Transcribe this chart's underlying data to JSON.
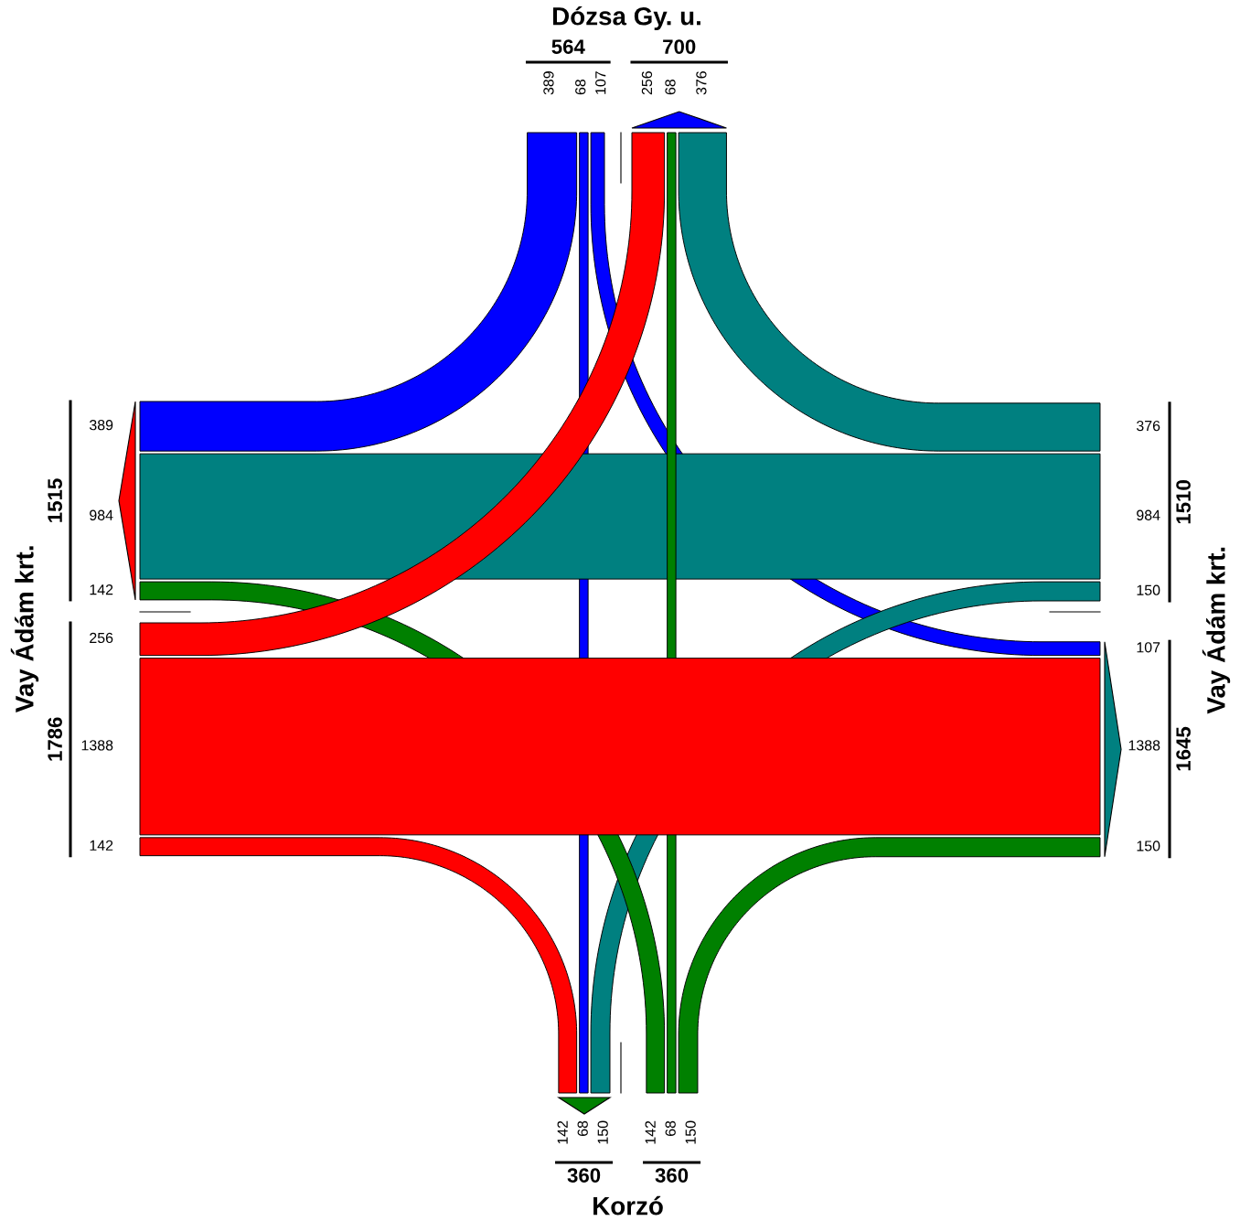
{
  "chart_data": {
    "type": "other",
    "categories": [
      "Dózsa Gy. u.",
      "Vay Ádám krt.",
      "Korzó",
      "Vay Ádám krt."
    ],
    "series": [
      {
        "color": "#0000ff",
        "values": [
          null,
          107,
          68,
          389
        ]
      },
      {
        "color": "#008080",
        "values": [
          376,
          null,
          150,
          984
        ]
      },
      {
        "color": "#008000",
        "values": [
          68,
          150,
          null,
          142
        ]
      },
      {
        "color": "#ff0000",
        "values": [
          256,
          1388,
          142,
          null
        ]
      }
    ],
    "annotations": [
      "376",
      "68",
      "256",
      "107",
      "150",
      "1388",
      "68",
      "150",
      "142",
      "389",
      "984",
      "142"
    ],
    "totals": [
      "564",
      "700",
      "1510",
      "1645",
      "360",
      "360",
      "1786",
      "1515"
    ],
    "data_labels": true
  }
}
